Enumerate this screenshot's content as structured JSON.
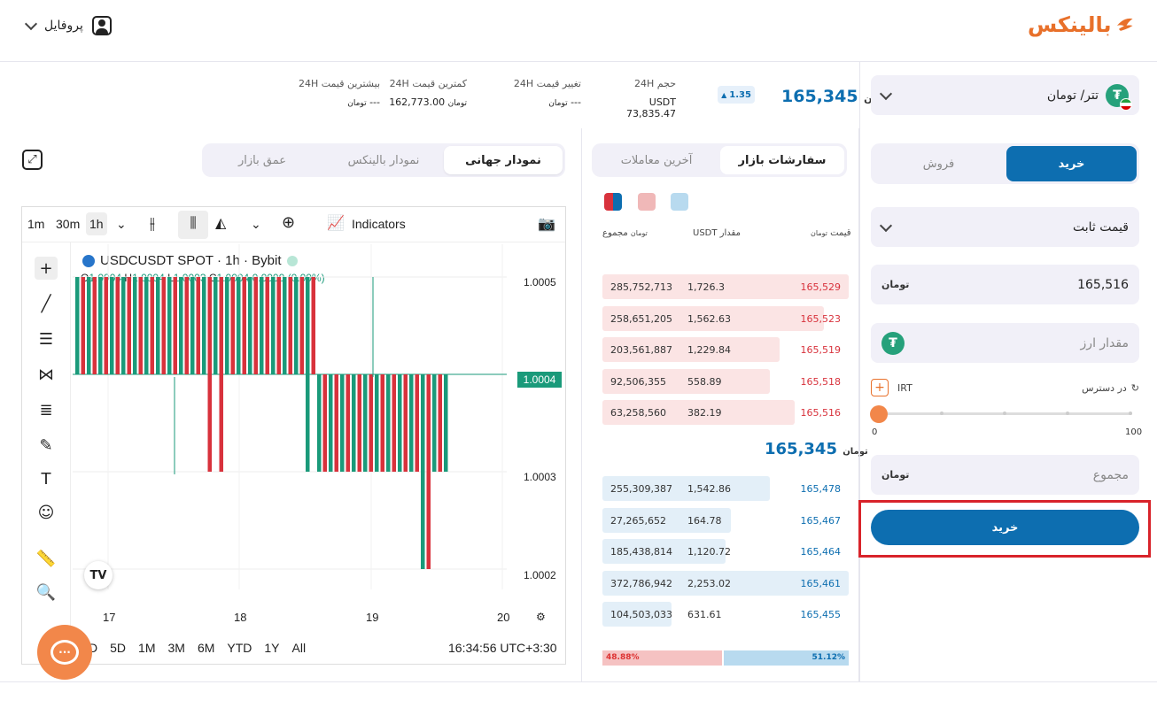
{
  "header": {
    "logo_text": "بالینکس",
    "profile_label": "پروفایل"
  },
  "market": {
    "pair": "تتر/ تومان",
    "price": "165,345",
    "change_badge": "1.35",
    "stats": [
      {
        "label": "حجم 24H",
        "value": "73,835.47",
        "unit": "USDT"
      },
      {
        "label": "تغییر قیمت 24H",
        "value": "---"
      },
      {
        "label": "کمترین قیمت 24H",
        "value": "162,773.00"
      },
      {
        "label": "بیشترین قیمت 24H",
        "value": "---"
      }
    ]
  },
  "chart_tabs": {
    "global": "نمودار جهانی",
    "balinex": "نمودار بالینکس",
    "depth": "عمق بازار"
  },
  "chart": {
    "intervals": [
      "1m",
      "30m",
      "1h"
    ],
    "indicators": "Indicators",
    "symbol": "USDCUSDT SPOT · 1h · Bybit",
    "ohlc": {
      "o_label": "O",
      "o": "1.0004",
      "h_label": "H",
      "h": "1.0004",
      "l_label": "L",
      "l": "1.0003",
      "c_label": "C",
      "c": "1.0004",
      "change": "0.0000 (0.00%)"
    },
    "y_labels": [
      "1.0005",
      "1.0004",
      "1.0003",
      "1.0002"
    ],
    "current": "1.0004",
    "x_labels": [
      "17",
      "18",
      "19",
      "20"
    ],
    "ranges": [
      "5D",
      "1M",
      "3M",
      "6M",
      "YTD",
      "1Y",
      "All"
    ],
    "time": "16:34:56 UTC+3:30",
    "range_partial": "D"
  },
  "orderbook": {
    "tab_orders": "سفارشات بازار",
    "tab_trades": "آخرین معاملات",
    "col_price": "قیمت",
    "col_amount": "مقدار",
    "col_amount_unit": "USDT",
    "col_total": "مجموع",
    "sells": [
      {
        "total": "285,752,713",
        "amount": "1,726.3",
        "price": "165,529",
        "depth": 1.0
      },
      {
        "total": "258,651,205",
        "amount": "1,562.63",
        "price": "165,523",
        "depth": 0.9
      },
      {
        "total": "203,561,887",
        "amount": "1,229.84",
        "price": "165,519",
        "depth": 0.72
      },
      {
        "total": "92,506,355",
        "amount": "558.89",
        "price": "165,518",
        "depth": 0.68
      },
      {
        "total": "63,258,560",
        "amount": "382.19",
        "price": "165,516",
        "depth": 0.78
      }
    ],
    "mid_price": "165,345",
    "buys": [
      {
        "total": "255,309,387",
        "amount": "1,542.86",
        "price": "165,478",
        "depth": 0.68
      },
      {
        "total": "27,265,652",
        "amount": "164.78",
        "price": "165,467",
        "depth": 0.52
      },
      {
        "total": "185,438,814",
        "amount": "1,120.72",
        "price": "165,464",
        "depth": 0.5
      },
      {
        "total": "372,786,942",
        "amount": "2,253.02",
        "price": "165,461",
        "depth": 1.0
      },
      {
        "total": "104,503,033",
        "amount": "631.61",
        "price": "165,455",
        "depth": 0.28
      }
    ],
    "sell_ratio": "48.88%",
    "buy_ratio": "51.12%"
  },
  "form": {
    "buy_tab": "خرید",
    "sell_tab": "فروش",
    "order_type": "قیمت ثابت",
    "price_value": "165,516",
    "amount_placeholder": "مقدار ارز",
    "available_label": "در دسترس",
    "available_unit": "IRT",
    "slider_min": "0",
    "slider_max": "100",
    "total_placeholder": "مجموع",
    "submit": "خرید",
    "toman": "تومان"
  },
  "colors": {
    "accent": "#0d6eb0",
    "buy": "#1a9a7a",
    "sell": "#d8323c",
    "brand": "#e8702a"
  }
}
